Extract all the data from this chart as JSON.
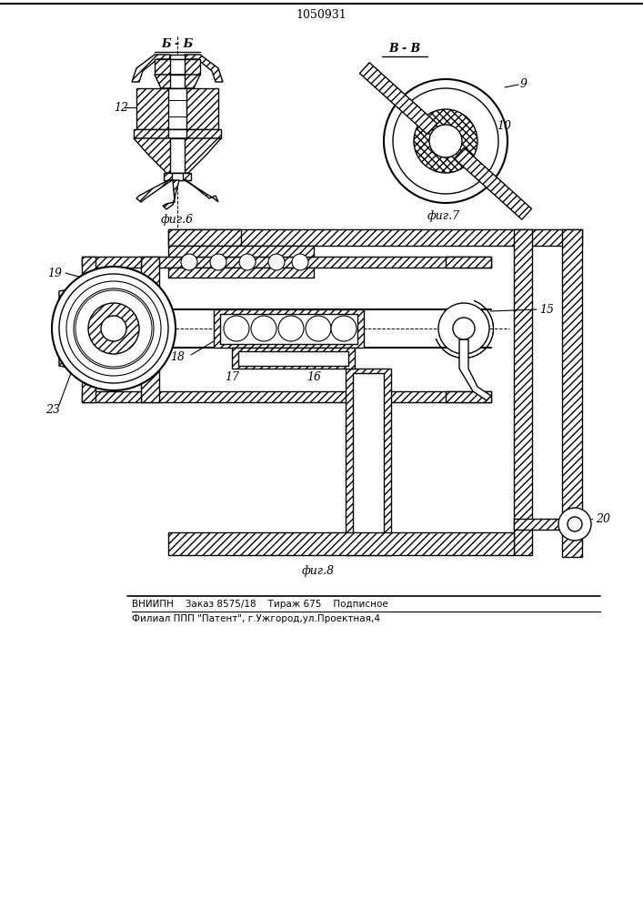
{
  "title": "1050931",
  "bg_color": "#ffffff",
  "fig6_label": "фиг.6",
  "fig7_label": "фиг.7",
  "fig8_label": "фиг.8",
  "fig6_section": "Б - Б",
  "fig7_section": "В - В",
  "label_12": "12",
  "label_9": "9",
  "label_10": "10",
  "label_15": "15",
  "label_16": "16",
  "label_17": "17",
  "label_18": "18",
  "label_19": "19",
  "label_20": "20",
  "label_23": "23",
  "footer_line1": "ВНИИПН    Заказ 8575/18    Тираж 675    Подписное",
  "footer_line2": "Филиал ППП \"Патент\", г.Ужгород,ул.Проектная,4",
  "line_color": "#000000",
  "line_width": 1.0
}
